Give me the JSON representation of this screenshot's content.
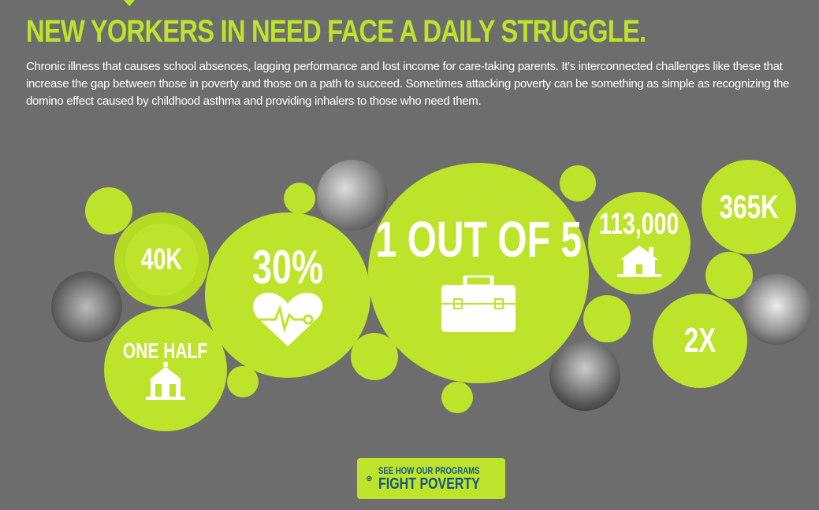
{
  "header": {
    "title": "NEW YORKERS IN NEED FACE A DAILY STRUGGLE.",
    "intro": "Chronic illness that causes school absences, lagging performance and lost income for care-taking parents. It's interconnected challenges like these that increase the gap between those in poverty and those on a path to succeed. Sometimes attacking poverty can be something as simple as recognizing the domino effect caused by childhood asthma and providing inhalers to those who need them."
  },
  "stats": [
    {
      "value": "40K"
    },
    {
      "value": "ONE HALF",
      "icon": "schoolhouse-icon"
    },
    {
      "value": "30%",
      "icon": "heart-pulse-icon"
    },
    {
      "value": "1 OUT OF 5",
      "icon": "briefcase-icon"
    },
    {
      "value": "113,000",
      "icon": "house-icon"
    },
    {
      "value": "365K"
    },
    {
      "value": "2X"
    }
  ],
  "cta": {
    "line1": "SEE HOW OUR PROGRAMS",
    "line2": "FIGHT POVERTY",
    "icon": "target-icon"
  },
  "colors": {
    "background": "#6d6d6d",
    "accent": "#bde32a",
    "cta_text": "#14568a"
  }
}
